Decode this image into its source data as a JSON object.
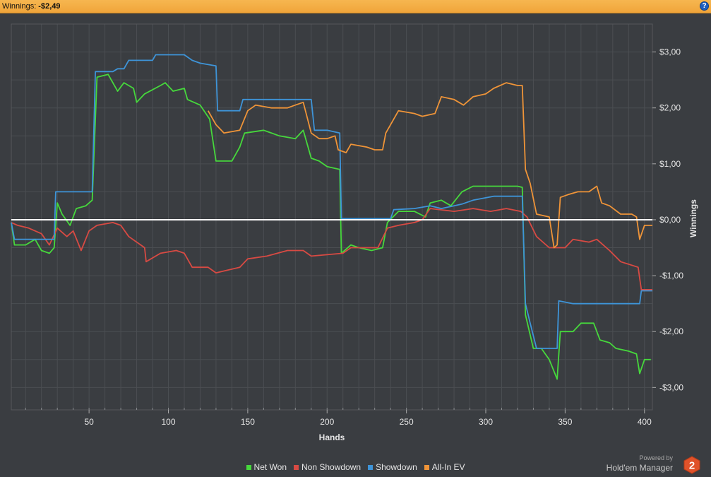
{
  "header": {
    "winnings_label": "Winnings:",
    "winnings_value": "-$2,49",
    "help_icon": "question-icon"
  },
  "branding": {
    "powered_by": "Powered by",
    "product_name": "Hold'em Manager",
    "logo_text": "2",
    "logo_icon": "hexagon-logo-icon"
  },
  "colors": {
    "background": "#3a3d41",
    "grid": "#4b4e52",
    "net_won": "#46d83c",
    "non_showdown": "#d84a43",
    "showdown": "#3e94d8",
    "allin_ev": "#ef9438",
    "zero_line": "#ffffff"
  },
  "chart_data": {
    "type": "line",
    "xlabel": "Hands",
    "ylabel": "Winnings",
    "xlim": [
      1,
      405
    ],
    "ylim": [
      -3.4,
      3.5
    ],
    "x_ticks": [
      50,
      100,
      150,
      200,
      250,
      300,
      350,
      400
    ],
    "y_ticks": [
      3,
      2,
      1,
      0,
      -1,
      -2,
      -3
    ],
    "y_tick_labels": [
      "$3,00",
      "$2,00",
      "$1,00",
      "$0,00",
      "-$1,00",
      "-$2,00",
      "-$3,00"
    ],
    "grid": true,
    "y_axis_side": "right",
    "legend": "bottom-center",
    "series": [
      {
        "name": "Net Won",
        "color": "#46d83c",
        "points": [
          [
            1,
            -0.05
          ],
          [
            3,
            -0.45
          ],
          [
            10,
            -0.45
          ],
          [
            16,
            -0.35
          ],
          [
            20,
            -0.55
          ],
          [
            25,
            -0.6
          ],
          [
            28,
            -0.5
          ],
          [
            30,
            0.3
          ],
          [
            33,
            0.1
          ],
          [
            38,
            -0.1
          ],
          [
            42,
            0.2
          ],
          [
            48,
            0.25
          ],
          [
            52,
            0.35
          ],
          [
            55,
            2.55
          ],
          [
            62,
            2.6
          ],
          [
            68,
            2.3
          ],
          [
            72,
            2.45
          ],
          [
            78,
            2.35
          ],
          [
            80,
            2.1
          ],
          [
            85,
            2.25
          ],
          [
            95,
            2.4
          ],
          [
            98,
            2.45
          ],
          [
            103,
            2.3
          ],
          [
            110,
            2.35
          ],
          [
            112,
            2.15
          ],
          [
            120,
            2.05
          ],
          [
            126,
            1.8
          ],
          [
            130,
            1.05
          ],
          [
            140,
            1.05
          ],
          [
            145,
            1.3
          ],
          [
            148,
            1.55
          ],
          [
            160,
            1.6
          ],
          [
            170,
            1.5
          ],
          [
            180,
            1.45
          ],
          [
            185,
            1.6
          ],
          [
            190,
            1.1
          ],
          [
            195,
            1.05
          ],
          [
            200,
            0.95
          ],
          [
            208,
            0.9
          ],
          [
            209,
            -0.6
          ],
          [
            215,
            -0.45
          ],
          [
            220,
            -0.5
          ],
          [
            228,
            -0.55
          ],
          [
            235,
            -0.5
          ],
          [
            238,
            -0.05
          ],
          [
            245,
            0.15
          ],
          [
            255,
            0.15
          ],
          [
            262,
            0.05
          ],
          [
            265,
            0.3
          ],
          [
            272,
            0.35
          ],
          [
            278,
            0.25
          ],
          [
            285,
            0.5
          ],
          [
            292,
            0.6
          ],
          [
            300,
            0.6
          ],
          [
            305,
            0.6
          ],
          [
            310,
            0.6
          ],
          [
            320,
            0.6
          ],
          [
            323,
            0.58
          ],
          [
            325,
            -1.7
          ],
          [
            330,
            -2.3
          ],
          [
            335,
            -2.3
          ],
          [
            340,
            -2.5
          ],
          [
            345,
            -2.85
          ],
          [
            347,
            -2.0
          ],
          [
            355,
            -2.0
          ],
          [
            360,
            -1.85
          ],
          [
            368,
            -1.85
          ],
          [
            372,
            -2.15
          ],
          [
            378,
            -2.2
          ],
          [
            382,
            -2.3
          ],
          [
            390,
            -2.35
          ],
          [
            395,
            -2.4
          ],
          [
            397,
            -2.75
          ],
          [
            400,
            -2.5
          ],
          [
            404,
            -2.5
          ]
        ]
      },
      {
        "name": "Non Showdown",
        "color": "#d84a43",
        "points": [
          [
            1,
            -0.05
          ],
          [
            5,
            -0.1
          ],
          [
            12,
            -0.15
          ],
          [
            20,
            -0.25
          ],
          [
            25,
            -0.45
          ],
          [
            30,
            -0.15
          ],
          [
            36,
            -0.3
          ],
          [
            40,
            -0.2
          ],
          [
            45,
            -0.55
          ],
          [
            50,
            -0.2
          ],
          [
            55,
            -0.1
          ],
          [
            65,
            -0.05
          ],
          [
            70,
            -0.1
          ],
          [
            75,
            -0.3
          ],
          [
            85,
            -0.5
          ],
          [
            86,
            -0.75
          ],
          [
            95,
            -0.6
          ],
          [
            105,
            -0.55
          ],
          [
            110,
            -0.6
          ],
          [
            115,
            -0.85
          ],
          [
            125,
            -0.85
          ],
          [
            130,
            -0.95
          ],
          [
            145,
            -0.85
          ],
          [
            150,
            -0.7
          ],
          [
            162,
            -0.65
          ],
          [
            175,
            -0.55
          ],
          [
            185,
            -0.55
          ],
          [
            190,
            -0.65
          ],
          [
            210,
            -0.6
          ],
          [
            215,
            -0.5
          ],
          [
            225,
            -0.5
          ],
          [
            232,
            -0.5
          ],
          [
            238,
            -0.15
          ],
          [
            245,
            -0.1
          ],
          [
            255,
            -0.05
          ],
          [
            260,
            0.0
          ],
          [
            265,
            0.2
          ],
          [
            280,
            0.15
          ],
          [
            292,
            0.2
          ],
          [
            303,
            0.15
          ],
          [
            313,
            0.2
          ],
          [
            322,
            0.15
          ],
          [
            326,
            0.05
          ],
          [
            332,
            -0.3
          ],
          [
            340,
            -0.5
          ],
          [
            350,
            -0.5
          ],
          [
            355,
            -0.35
          ],
          [
            365,
            -0.4
          ],
          [
            370,
            -0.35
          ],
          [
            378,
            -0.55
          ],
          [
            385,
            -0.75
          ],
          [
            396,
            -0.85
          ],
          [
            398,
            -1.25
          ],
          [
            405,
            -1.25
          ]
        ]
      },
      {
        "name": "Showdown",
        "color": "#3e94d8",
        "points": [
          [
            1,
            -0.05
          ],
          [
            3,
            -0.35
          ],
          [
            25,
            -0.35
          ],
          [
            28,
            -0.35
          ],
          [
            29,
            0.5
          ],
          [
            40,
            0.5
          ],
          [
            45,
            0.5
          ],
          [
            52,
            0.5
          ],
          [
            54,
            2.65
          ],
          [
            65,
            2.65
          ],
          [
            68,
            2.7
          ],
          [
            72,
            2.7
          ],
          [
            75,
            2.85
          ],
          [
            90,
            2.85
          ],
          [
            92,
            2.95
          ],
          [
            110,
            2.95
          ],
          [
            115,
            2.85
          ],
          [
            120,
            2.8
          ],
          [
            130,
            2.75
          ],
          [
            131,
            1.95
          ],
          [
            145,
            1.95
          ],
          [
            147,
            2.15
          ],
          [
            190,
            2.15
          ],
          [
            192,
            1.6
          ],
          [
            200,
            1.6
          ],
          [
            208,
            1.55
          ],
          [
            209,
            0.02
          ],
          [
            230,
            0.02
          ],
          [
            240,
            0.02
          ],
          [
            242,
            0.18
          ],
          [
            255,
            0.2
          ],
          [
            265,
            0.25
          ],
          [
            272,
            0.2
          ],
          [
            280,
            0.25
          ],
          [
            285,
            0.28
          ],
          [
            292,
            0.35
          ],
          [
            305,
            0.42
          ],
          [
            310,
            0.42
          ],
          [
            323,
            0.42
          ],
          [
            325,
            -1.5
          ],
          [
            328,
            -1.85
          ],
          [
            332,
            -2.3
          ],
          [
            345,
            -2.3
          ],
          [
            346,
            -1.45
          ],
          [
            355,
            -1.5
          ],
          [
            375,
            -1.5
          ],
          [
            385,
            -1.5
          ],
          [
            397,
            -1.5
          ],
          [
            398,
            -1.27
          ],
          [
            405,
            -1.27
          ]
        ]
      },
      {
        "name": "All-In EV",
        "color": "#ef9438",
        "points": [
          [
            125,
            1.95
          ],
          [
            130,
            1.7
          ],
          [
            135,
            1.55
          ],
          [
            145,
            1.6
          ],
          [
            150,
            1.95
          ],
          [
            155,
            2.05
          ],
          [
            165,
            2.0
          ],
          [
            175,
            2.0
          ],
          [
            180,
            2.05
          ],
          [
            185,
            2.1
          ],
          [
            190,
            1.55
          ],
          [
            195,
            1.45
          ],
          [
            200,
            1.45
          ],
          [
            205,
            1.5
          ],
          [
            207,
            1.25
          ],
          [
            212,
            1.2
          ],
          [
            215,
            1.35
          ],
          [
            225,
            1.3
          ],
          [
            230,
            1.25
          ],
          [
            235,
            1.25
          ],
          [
            237,
            1.55
          ],
          [
            245,
            1.95
          ],
          [
            255,
            1.9
          ],
          [
            260,
            1.85
          ],
          [
            268,
            1.9
          ],
          [
            272,
            2.2
          ],
          [
            280,
            2.15
          ],
          [
            286,
            2.05
          ],
          [
            292,
            2.2
          ],
          [
            300,
            2.25
          ],
          [
            305,
            2.35
          ],
          [
            313,
            2.45
          ],
          [
            320,
            2.4
          ],
          [
            323,
            2.4
          ],
          [
            325,
            0.9
          ],
          [
            328,
            0.65
          ],
          [
            332,
            0.1
          ],
          [
            340,
            0.05
          ],
          [
            343,
            -0.5
          ],
          [
            345,
            -0.45
          ],
          [
            347,
            0.4
          ],
          [
            352,
            0.45
          ],
          [
            358,
            0.5
          ],
          [
            365,
            0.5
          ],
          [
            370,
            0.6
          ],
          [
            373,
            0.3
          ],
          [
            378,
            0.25
          ],
          [
            385,
            0.1
          ],
          [
            392,
            0.1
          ],
          [
            395,
            0.05
          ],
          [
            397,
            -0.35
          ],
          [
            400,
            -0.1
          ],
          [
            405,
            -0.1
          ]
        ]
      }
    ]
  }
}
